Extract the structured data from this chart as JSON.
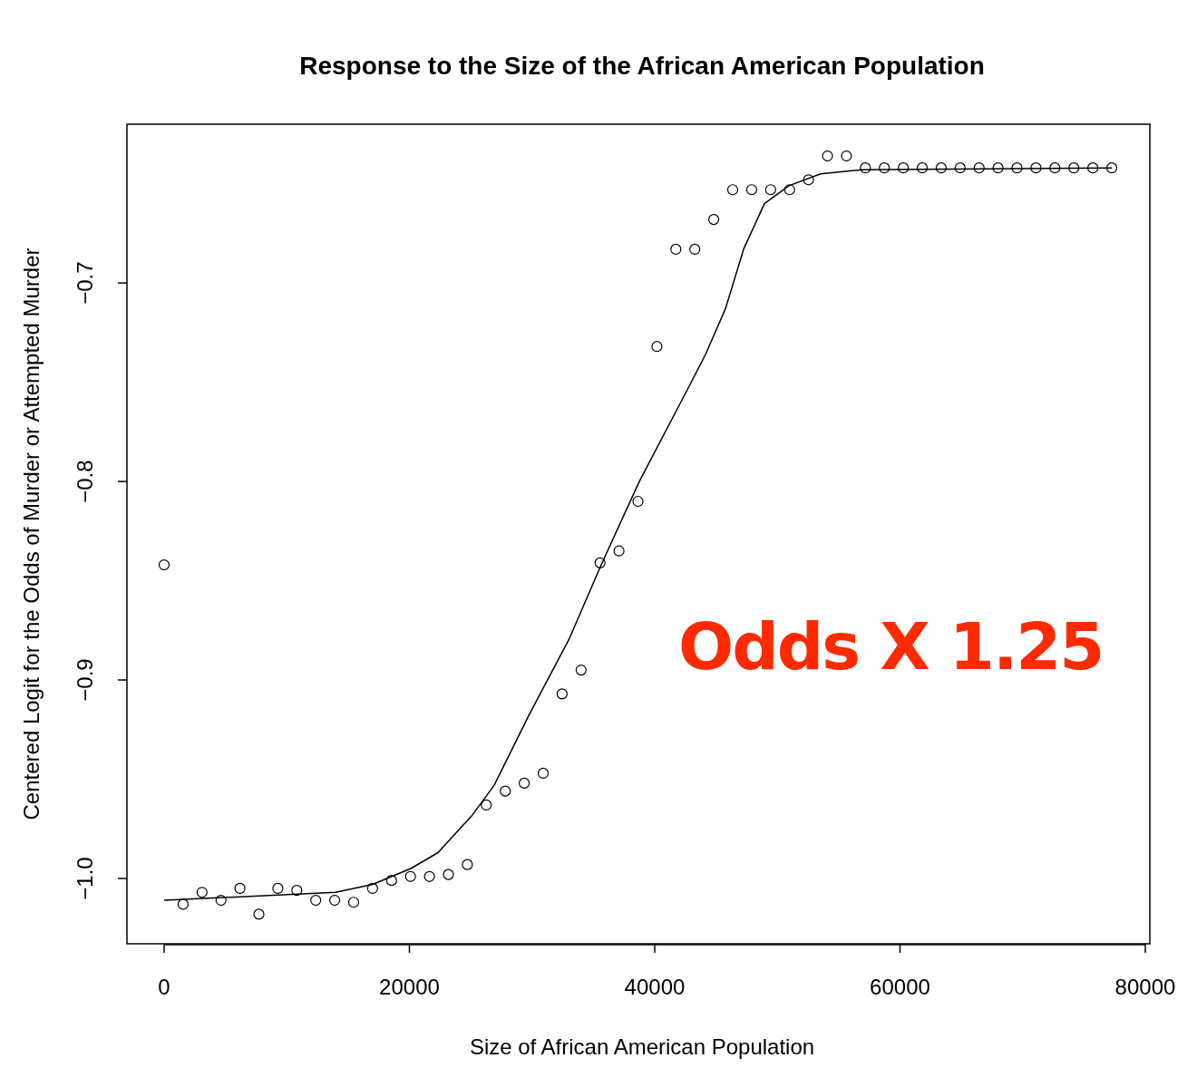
{
  "chart_data": {
    "type": "scatter",
    "title": "Response to the Size of the African American Population",
    "xlabel": "Size of African American Population",
    "ylabel": "Centered Logit for the Odds of Murder or Attempted Murder",
    "xlim": [
      -3031,
      80370
    ],
    "ylim": [
      -1.0329,
      -0.62
    ],
    "xticks": [
      0,
      20000,
      40000,
      60000,
      80000
    ],
    "yticks": [
      {
        "value": -0.7,
        "label": "−0.7"
      },
      {
        "value": -0.8,
        "label": "−0.8"
      },
      {
        "value": -0.9,
        "label": "−0.9"
      },
      {
        "value": -1.0,
        "label": "−1.0"
      }
    ],
    "grid": false,
    "annotations": [
      "Odds X 1.25"
    ],
    "series": [
      {
        "marker": "circle",
        "color": "#000000",
        "x": [
          0,
          1545,
          3091,
          4636,
          6181,
          7727,
          9272,
          10817,
          12362,
          13908,
          15453,
          16998,
          18544,
          20089,
          21634,
          23180,
          24725,
          26270,
          27815,
          29361,
          30906,
          32451,
          33997,
          35542,
          37087,
          38633,
          40178,
          41723,
          43268,
          44814,
          46359,
          47904,
          49450,
          50995,
          52540,
          54086,
          55631,
          57176,
          58721,
          60267,
          61812,
          63357,
          64903,
          66448,
          67993,
          69539,
          71084,
          72629,
          74174,
          75720,
          77265
        ],
        "values": [
          -0.842,
          -1.013,
          -1.007,
          -1.011,
          -1.005,
          -1.018,
          -1.005,
          -1.006,
          -1.011,
          -1.011,
          -1.012,
          -1.005,
          -1.001,
          -0.999,
          -0.999,
          -0.998,
          -0.993,
          -0.963,
          -0.956,
          -0.952,
          -0.947,
          -0.907,
          -0.895,
          -0.841,
          -0.835,
          -0.81,
          -0.732,
          -0.683,
          -0.683,
          -0.668,
          -0.653,
          -0.653,
          -0.653,
          -0.653,
          -0.648,
          -0.636,
          -0.636,
          -0.642,
          -0.642,
          -0.642,
          -0.642,
          -0.642,
          -0.642,
          -0.642,
          -0.642,
          -0.642,
          -0.642,
          -0.642,
          -0.642,
          -0.642,
          -0.642
        ]
      },
      {
        "type": "line",
        "line_style": "solid",
        "color": "#000000",
        "x": [
          0,
          13974,
          17006,
          20111,
          22329,
          25139,
          26913,
          29723,
          33050,
          35638,
          38743,
          42810,
          44140,
          45767,
          47246,
          48946,
          50943,
          53530,
          56858,
          77264
        ],
        "values": [
          -1.011,
          -1.007,
          -1.003,
          -0.995,
          -0.987,
          -0.968,
          -0.953,
          -0.918,
          -0.879,
          -0.842,
          -0.8,
          -0.752,
          -0.736,
          -0.713,
          -0.683,
          -0.66,
          -0.651,
          -0.645,
          -0.643,
          -0.642
        ]
      }
    ]
  }
}
